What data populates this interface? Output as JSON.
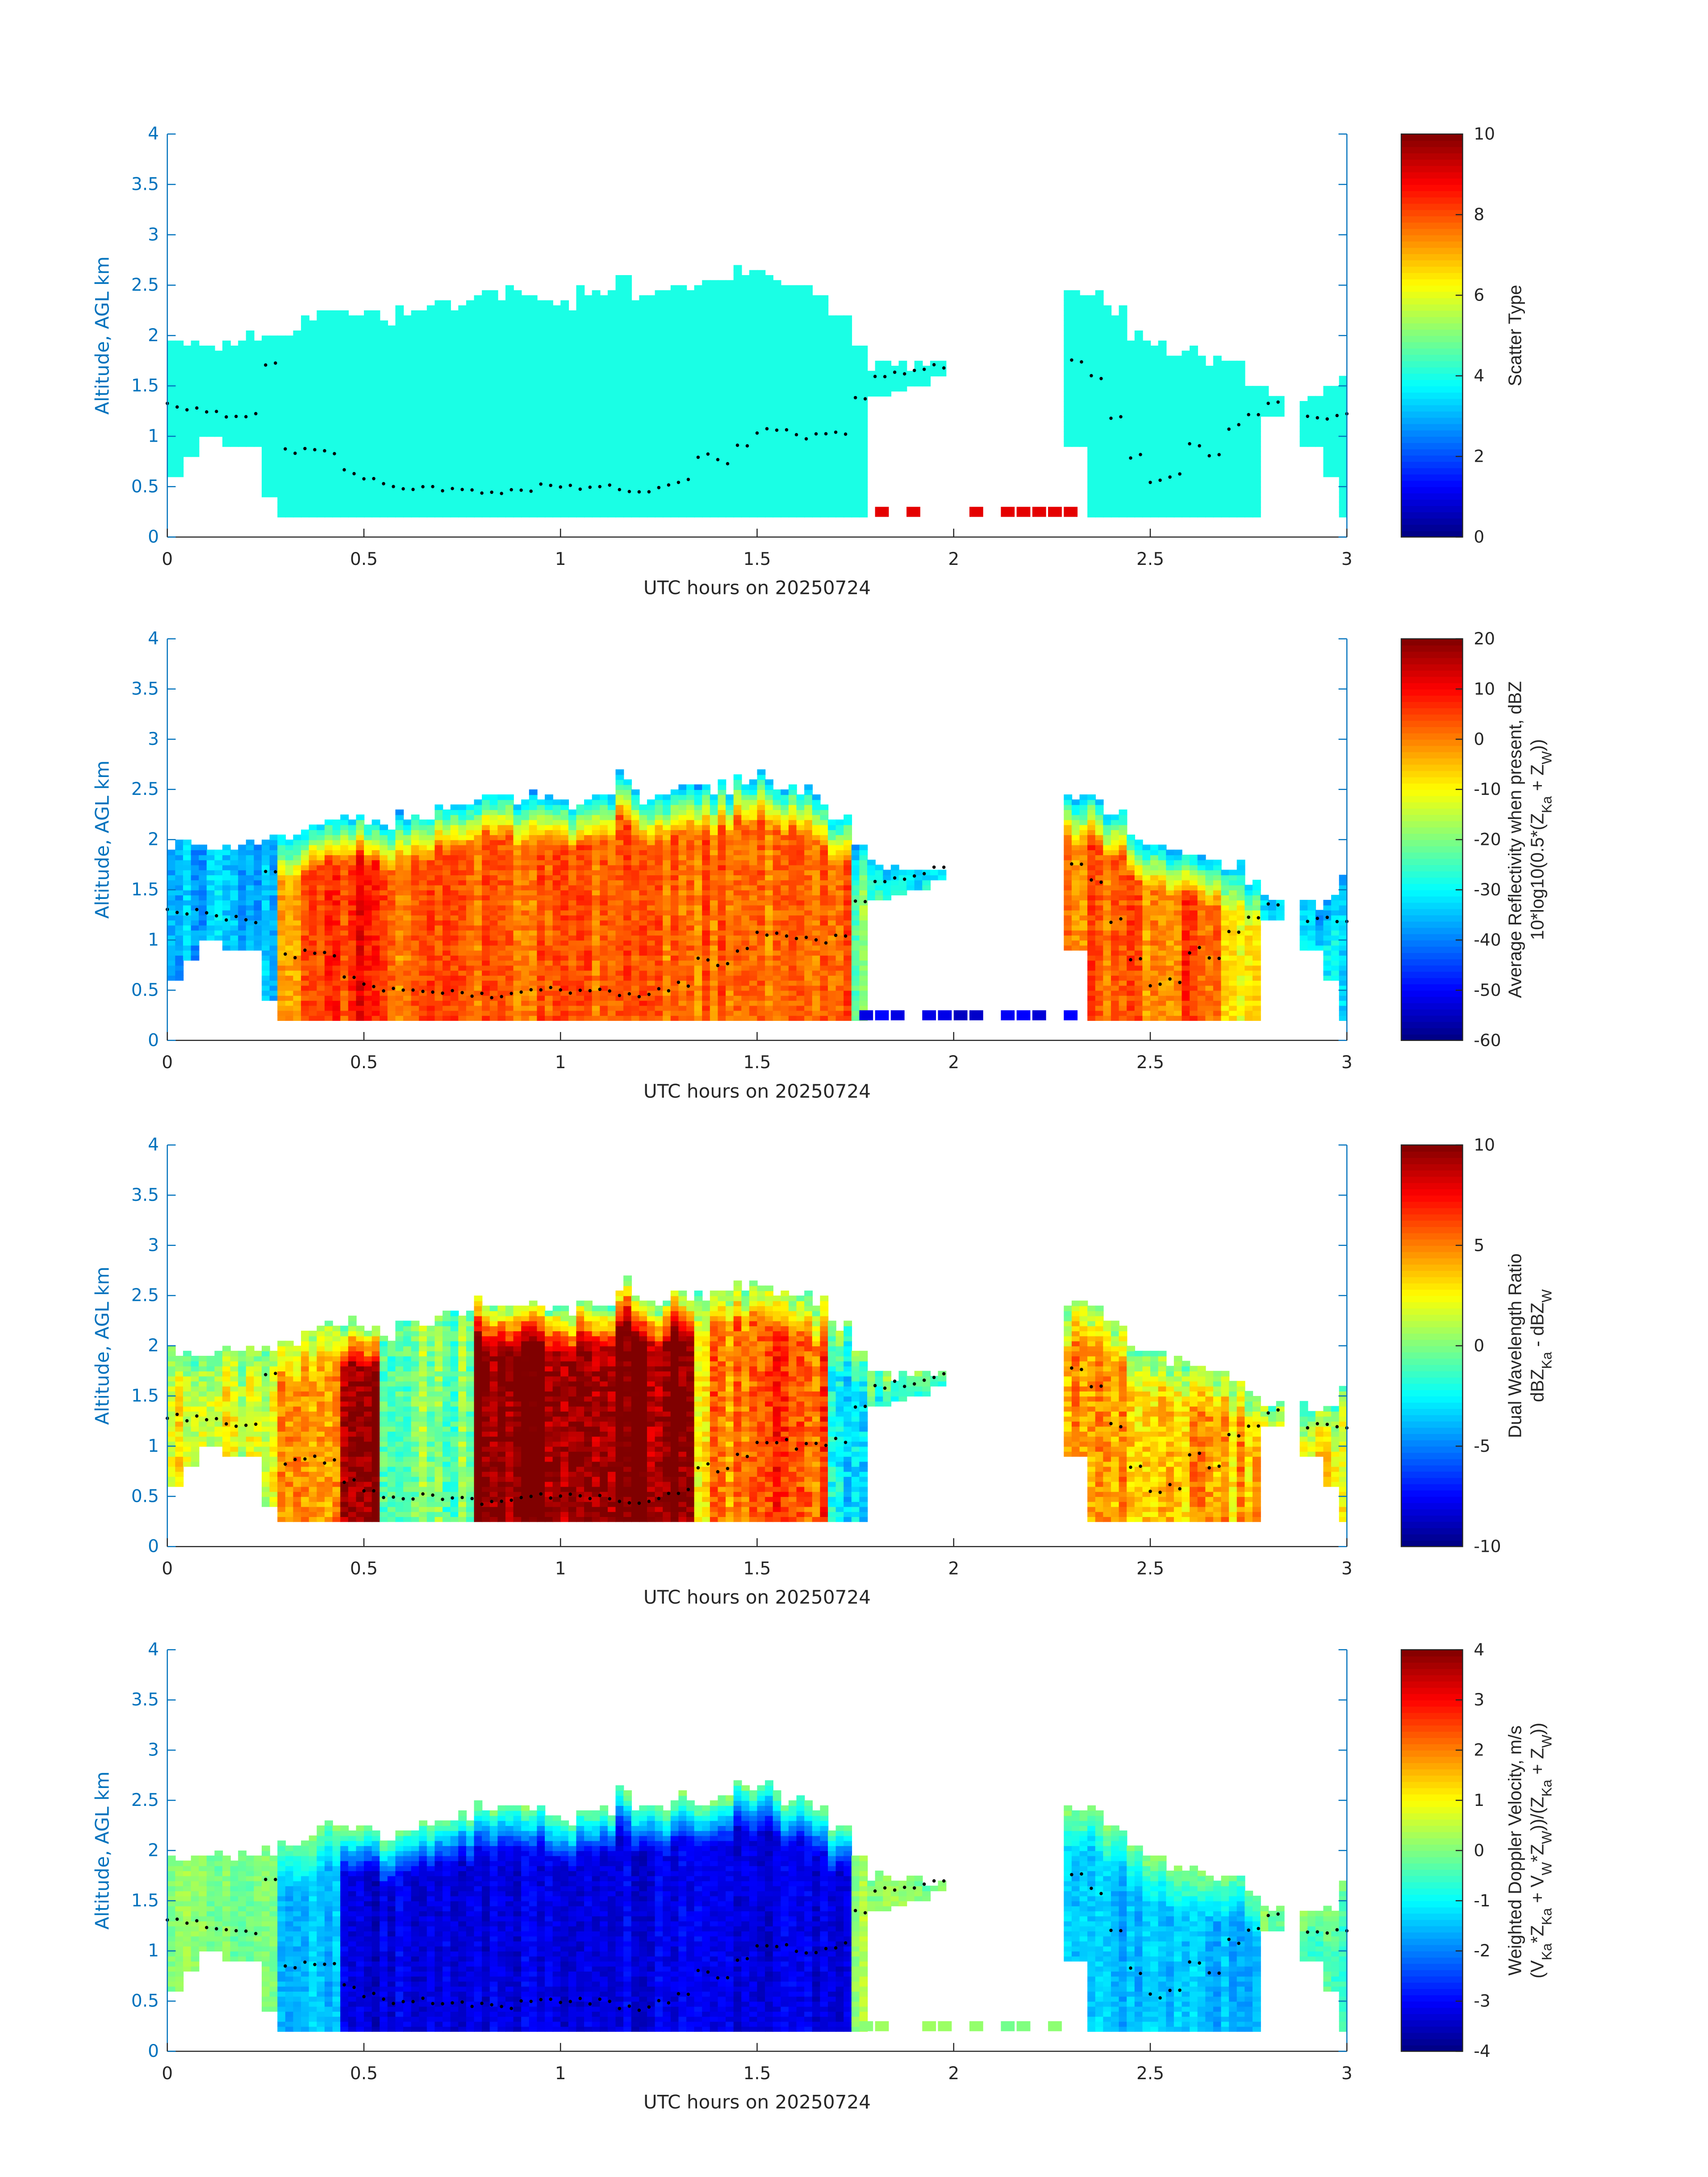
{
  "chart_data": {
    "type": "heatmap",
    "time_grid_step_h": 0.05,
    "xlim": [
      0,
      3
    ],
    "ylim": [
      0,
      4
    ],
    "xticks": [
      "0",
      "0.5",
      "1",
      "1.5",
      "2",
      "2.5",
      "3"
    ],
    "yticks": [
      "0",
      "0.5",
      "1",
      "1.5",
      "2",
      "2.5",
      "3",
      "3.5",
      "4"
    ],
    "xlabel": "UTC hours on 20250724",
    "ylabel": "Altitude, AGL km",
    "cloud_top_km": [
      1.9,
      1.9,
      1.9,
      1.9,
      1.95,
      2.0,
      2.0,
      2.1,
      2.2,
      2.2,
      2.2,
      2.1,
      2.2,
      2.2,
      2.3,
      2.3,
      2.4,
      2.4,
      2.4,
      2.4,
      2.3,
      2.4,
      2.4,
      2.6,
      2.4,
      2.4,
      2.5,
      2.5,
      2.5,
      2.6,
      2.6,
      2.5,
      2.5,
      2.4,
      2.2,
      1.9,
      1.7,
      1.7,
      1.7,
      1.7,
      null,
      null,
      null,
      null,
      null,
      null,
      2.4,
      2.4,
      2.2,
      2.0,
      1.9,
      1.8,
      1.8,
      1.7,
      1.7,
      1.5,
      1.4,
      null,
      1.35,
      1.4,
      1.6
    ],
    "cloud_base_km": [
      0.6,
      0.8,
      1.0,
      0.9,
      0.9,
      0.4,
      0.2,
      0.2,
      0.2,
      0.2,
      0.2,
      0.2,
      0.2,
      0.2,
      0.2,
      0.2,
      0.2,
      0.2,
      0.2,
      0.2,
      0.2,
      0.2,
      0.2,
      0.2,
      0.2,
      0.2,
      0.2,
      0.2,
      0.2,
      0.2,
      0.2,
      0.2,
      0.2,
      0.2,
      0.2,
      0.2,
      1.4,
      1.45,
      1.5,
      1.6,
      null,
      null,
      null,
      null,
      null,
      null,
      0.9,
      0.2,
      0.2,
      0.2,
      0.2,
      0.2,
      0.2,
      0.2,
      0.2,
      0.2,
      1.2,
      null,
      0.9,
      0.6,
      0.2
    ],
    "lidar_cloud_base_km": [
      1.3,
      1.28,
      1.25,
      1.22,
      1.2,
      1.7,
      0.85,
      0.87,
      0.85,
      0.65,
      0.55,
      0.5,
      0.5,
      0.5,
      0.48,
      0.47,
      0.45,
      0.45,
      0.48,
      0.5,
      0.5,
      0.5,
      0.5,
      0.45,
      0.43,
      0.5,
      0.55,
      0.8,
      0.75,
      0.9,
      1.05,
      1.05,
      1.0,
      1.0,
      1.05,
      1.4,
      1.6,
      1.62,
      1.65,
      1.7,
      null,
      null,
      null,
      null,
      null,
      null,
      1.75,
      1.6,
      1.2,
      0.8,
      0.55,
      0.6,
      0.9,
      0.8,
      1.1,
      1.2,
      1.35,
      null,
      1.2,
      1.2,
      1.2
    ],
    "surface_clutter_h": [
      [
        1.76,
        2.05
      ],
      [
        2.12,
        2.3
      ]
    ],
    "panels": [
      {
        "name": "scatter-type",
        "colorbar_label": [
          [
            "Scatter Type"
          ]
        ],
        "clim": [
          0,
          10
        ],
        "cbticks": [
          "0",
          "2",
          "4",
          "6",
          "8",
          "10"
        ],
        "cbtick_values": [
          0,
          2,
          4,
          6,
          8,
          10
        ],
        "column_core": [
          4
        ],
        "edge": 4,
        "noise": 0,
        "clutter_value": 9
      },
      {
        "name": "reflectivity",
        "colorbar_label": [
          [
            "Average Reflectivity when present, dBZ"
          ],
          [
            "10*log10(0.5*(Z",
            "Ka",
            " + Z",
            "W",
            "))"
          ]
        ],
        "clim": [
          -60,
          20
        ],
        "cbticks": [
          "-60",
          "-50",
          "-40",
          "-30",
          "-20",
          "-10",
          "0",
          "10",
          "20"
        ],
        "cbtick_values": [
          -60,
          -50,
          -40,
          -30,
          -20,
          -10,
          0,
          10,
          20
        ],
        "column_core": [
          -35,
          -35,
          -35,
          -35,
          -35,
          -35,
          -5,
          5,
          5,
          5,
          8,
          2,
          2,
          2,
          2,
          2,
          2,
          2,
          2,
          2,
          2,
          2,
          2,
          2,
          2,
          2,
          2,
          2,
          2,
          2,
          2,
          2,
          2,
          2,
          2,
          -20,
          -25,
          -25,
          -25,
          -25,
          null,
          null,
          null,
          null,
          null,
          null,
          0,
          5,
          0,
          5,
          0,
          0,
          5,
          0,
          -10,
          -10,
          -30,
          null,
          -30,
          -30,
          -30
        ],
        "edge": -35,
        "noise": 7,
        "clutter_value": -52
      },
      {
        "name": "dual-wavelength-ratio",
        "colorbar_label": [
          [
            "Dual Wavelength Ratio"
          ],
          [
            "dBZ",
            "Ka",
            " - dBZ",
            "W"
          ]
        ],
        "clim": [
          -10,
          10
        ],
        "cbticks": [
          "-10",
          "-5",
          "0",
          "5",
          "10"
        ],
        "cbtick_values": [
          -10,
          -5,
          0,
          5,
          10
        ],
        "column_core": [
          2,
          2,
          2,
          2,
          2,
          2,
          4,
          4,
          4,
          10,
          10,
          0,
          0,
          0,
          0,
          0,
          10,
          10,
          10,
          10,
          10,
          10,
          10,
          10,
          10,
          10,
          10,
          3,
          5,
          6,
          6,
          6,
          6,
          6,
          -3,
          -3,
          -3,
          -3,
          -3,
          -3,
          null,
          null,
          null,
          null,
          null,
          null,
          4,
          5,
          4,
          4,
          4,
          4,
          4,
          4,
          4,
          4,
          3,
          null,
          3,
          3,
          3
        ],
        "edge": 0,
        "noise": 2.5,
        "clutter_value": null
      },
      {
        "name": "doppler-velocity",
        "colorbar_label": [
          [
            "Weighted Doppler Velocity, m/s"
          ],
          [
            "(V",
            "Ka",
            "*Z",
            "Ka",
            " + V",
            "W",
            "*Z",
            "W",
            "))/(Z",
            "Ka",
            " + Z",
            "W",
            "))"
          ]
        ],
        "clim": [
          -4,
          4
        ],
        "cbticks": [
          "-4",
          "-3",
          "-2",
          "-1",
          "0",
          "1",
          "2",
          "3",
          "4"
        ],
        "cbtick_values": [
          -4,
          -3,
          -2,
          -1,
          0,
          1,
          2,
          3,
          4
        ],
        "column_core": [
          0,
          0,
          0,
          0,
          0,
          0,
          -1.5,
          -1.5,
          -1.5,
          -3.3,
          -3.3,
          -3.2,
          -3.2,
          -3.2,
          -3.2,
          -3.2,
          -3.2,
          -3.2,
          -3.2,
          -3.2,
          -3.2,
          -3.2,
          -3.2,
          -3.2,
          -3.2,
          -3.2,
          -3.2,
          -3.2,
          -3.2,
          -3.2,
          -3.2,
          -3.2,
          -3.2,
          -3.2,
          -3.2,
          0.3,
          0.3,
          0.3,
          0.3,
          0.3,
          null,
          null,
          null,
          null,
          null,
          null,
          -1.5,
          -1.5,
          -1.5,
          -1.5,
          -1.5,
          -1.5,
          -1.5,
          -1.5,
          -1.5,
          -1.5,
          -0.5,
          null,
          -0.5,
          -0.5,
          -0.5
        ],
        "edge": 0,
        "noise": 0.5,
        "clutter_value": 0
      }
    ]
  }
}
